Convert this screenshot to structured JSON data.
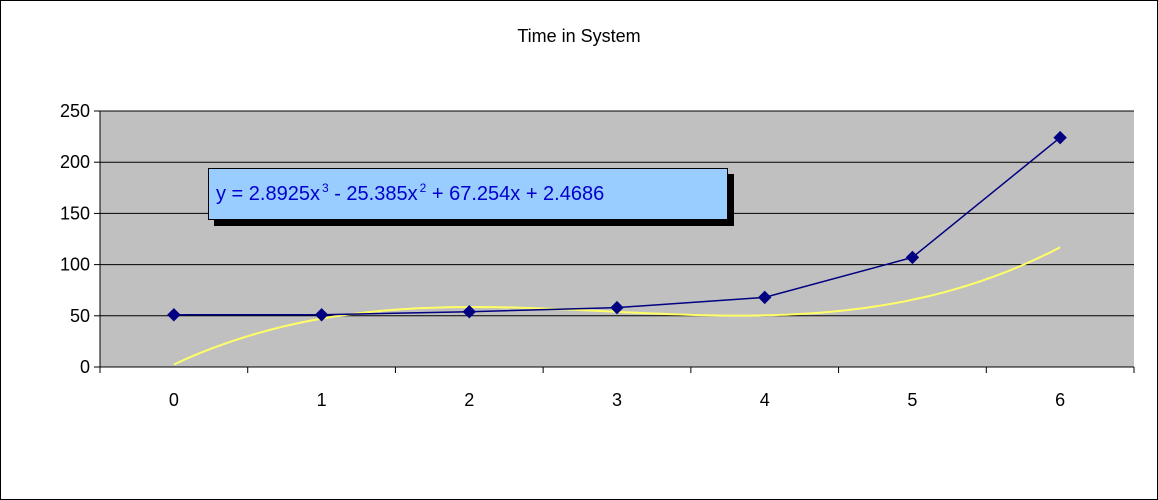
{
  "chart_data": {
    "type": "line",
    "title": "Time in System",
    "xlabel": "",
    "ylabel": "",
    "categories": [
      "0",
      "1",
      "2",
      "3",
      "4",
      "5",
      "6"
    ],
    "x": [
      0,
      1,
      2,
      3,
      4,
      5,
      6
    ],
    "ylim": [
      0,
      250
    ],
    "yticks": [
      0,
      50,
      100,
      150,
      200,
      250
    ],
    "grid": true,
    "legend": "none",
    "series": [
      {
        "values": [
          51,
          51,
          54,
          58,
          68,
          107,
          224
        ],
        "color": "#000080",
        "marker": "diamond"
      }
    ],
    "trendline": {
      "kind": "polynomial-3",
      "coefficients": [
        2.8925,
        -25.385,
        67.254,
        2.4686
      ],
      "color": "#ffff66",
      "equation": {
        "part1": "y = 2.8925x",
        "exp1": "3",
        "part2": " - 25.385x",
        "exp2": "2",
        "part3": " + 67.254x + 2.4686"
      }
    },
    "colors": {
      "plot_area": "#c0c0c0",
      "label_box": "#99ccff",
      "label_text": "#0000cc"
    }
  }
}
